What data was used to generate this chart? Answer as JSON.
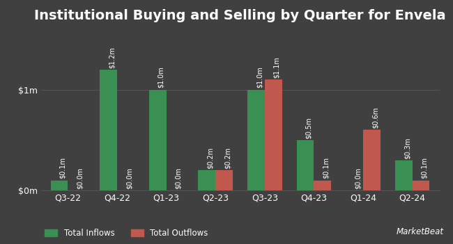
{
  "title": "Institutional Buying and Selling by Quarter for Envela",
  "quarters": [
    "Q3-22",
    "Q4-22",
    "Q1-23",
    "Q2-23",
    "Q3-23",
    "Q4-23",
    "Q1-24",
    "Q2-24"
  ],
  "inflows": [
    0.1,
    1.2,
    1.0,
    0.2,
    1.0,
    0.5,
    0.0,
    0.3
  ],
  "outflows": [
    0.0,
    0.0,
    0.0,
    0.2,
    1.1,
    0.1,
    0.6,
    0.1
  ],
  "inflow_labels": [
    "$0.1m",
    "$1.2m",
    "$1.0m",
    "$0.2m",
    "$1.0m",
    "$0.5m",
    "$0.0m",
    "$0.3m"
  ],
  "outflow_labels": [
    "$0.0m",
    "$0.0m",
    "$0.0m",
    "$0.2m",
    "$1.1m",
    "$0.1m",
    "$0.6m",
    "$0.1m"
  ],
  "inflow_color": "#3a8f52",
  "outflow_color": "#c0584d",
  "background_color": "#404040",
  "text_color": "#ffffff",
  "grid_color": "#555555",
  "yticks": [
    0.0,
    1.0
  ],
  "ytick_labels": [
    "$0m",
    "$1m"
  ],
  "title_fontsize": 14,
  "tick_fontsize": 9,
  "bar_label_fontsize": 7,
  "legend_fontsize": 8.5,
  "bar_width": 0.35,
  "ylim": [
    0,
    1.6
  ]
}
